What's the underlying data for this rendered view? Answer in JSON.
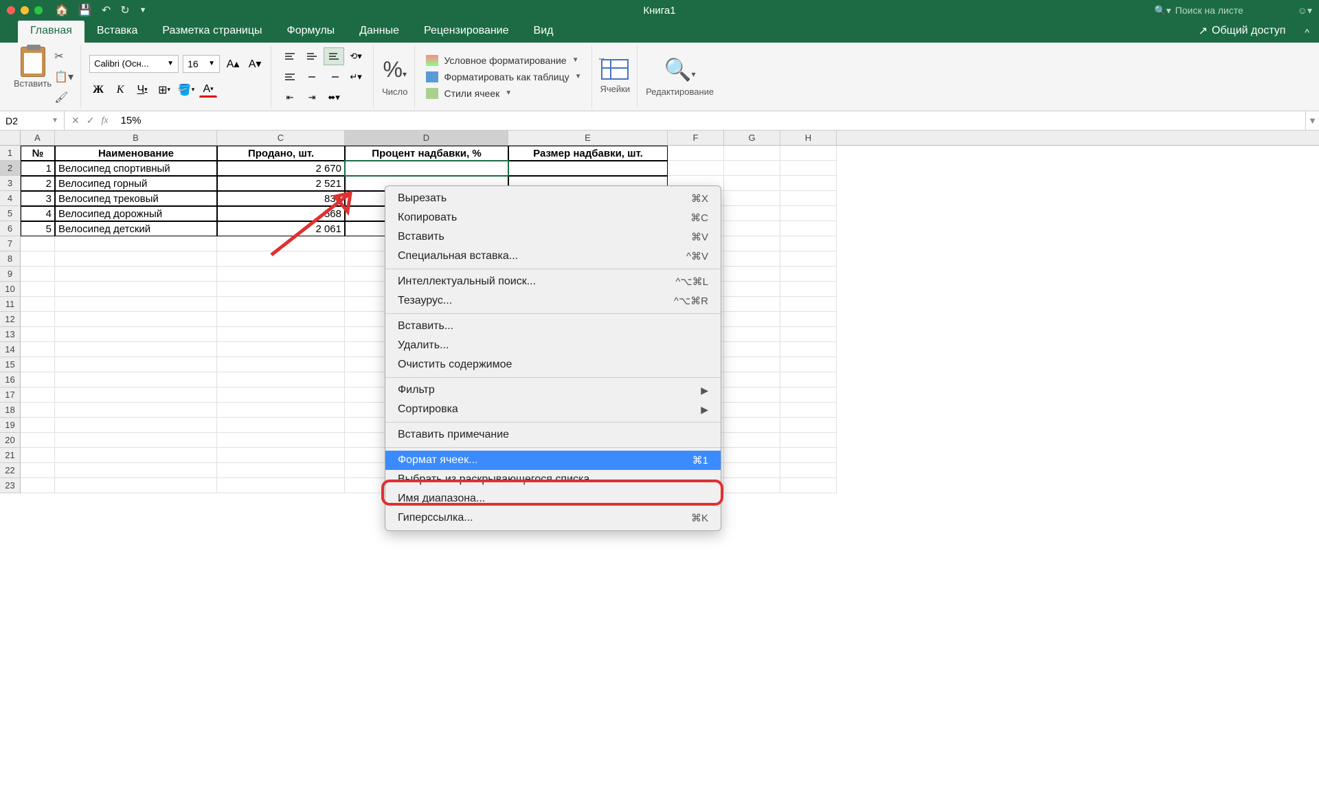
{
  "window": {
    "title": "Книга1"
  },
  "search": {
    "placeholder": "Поиск на листе"
  },
  "tabs": {
    "home": "Главная",
    "insert": "Вставка",
    "layout": "Разметка страницы",
    "formulas": "Формулы",
    "data": "Данные",
    "review": "Рецензирование",
    "view": "Вид",
    "share": "Общий доступ"
  },
  "ribbon": {
    "paste": "Вставить",
    "font_name": "Calibri (Осн...",
    "font_size": "16",
    "number": "Число",
    "cond_fmt": "Условное форматирование",
    "table_fmt": "Форматировать как таблицу",
    "cell_styles": "Стили ячеек",
    "cells": "Ячейки",
    "editing": "Редактирование"
  },
  "namebox": "D2",
  "formula": "15%",
  "cols": [
    "A",
    "B",
    "C",
    "D",
    "E",
    "F",
    "G",
    "H"
  ],
  "headers": {
    "num": "№",
    "name": "Наименование",
    "sold": "Продано, шт.",
    "markup_pct": "Процент надбавки, %",
    "markup_amt": "Размер надбавки, шт."
  },
  "rows": [
    {
      "n": "1",
      "name": "Велосипед спортивный",
      "sold": "2 670"
    },
    {
      "n": "2",
      "name": "Велосипед горный",
      "sold": "2 521"
    },
    {
      "n": "3",
      "name": "Велосипед трековый",
      "sold": "833"
    },
    {
      "n": "4",
      "name": "Велосипед дорожный",
      "sold": "568"
    },
    {
      "n": "5",
      "name": "Велосипед детский",
      "sold": "2 061"
    }
  ],
  "ctx": {
    "cut": "Вырезать",
    "cut_k": "⌘X",
    "copy": "Копировать",
    "copy_k": "⌘C",
    "paste": "Вставить",
    "paste_k": "⌘V",
    "pspecial": "Специальная вставка...",
    "pspecial_k": "^⌘V",
    "smart": "Интеллектуальный поиск...",
    "smart_k": "^⌥⌘L",
    "thes": "Тезаурус...",
    "thes_k": "^⌥⌘R",
    "insert": "Вставить...",
    "delete": "Удалить...",
    "clear": "Очистить содержимое",
    "filter": "Фильтр",
    "sort": "Сортировка",
    "comment": "Вставить примечание",
    "format": "Формат ячеек...",
    "format_k": "⌘1",
    "dropdown": "Выбрать из раскрывающегося списка...",
    "range": "Имя диапазона...",
    "link": "Гиперссылка...",
    "link_k": "⌘K"
  }
}
